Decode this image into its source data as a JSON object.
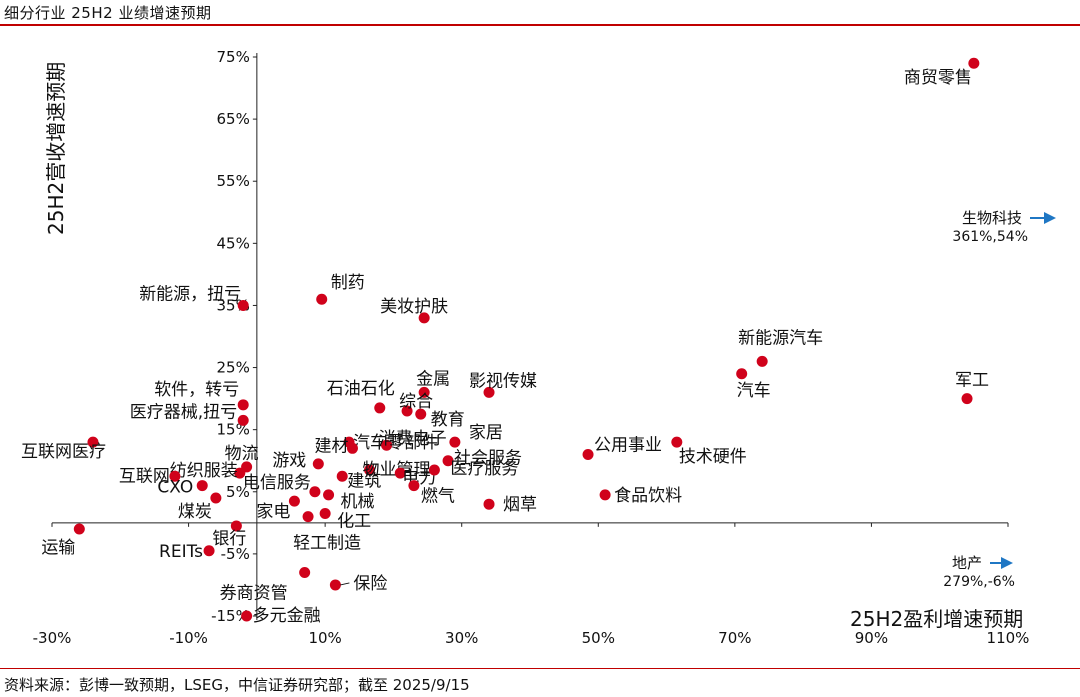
{
  "title": "细分行业 25H2 业绩增速预期",
  "source": "资料来源：彭博一致预期，LSEG，中信证券研究部；截至 2025/9/15",
  "chart_data": {
    "type": "scatter",
    "title": "细分行业 25H2 业绩增速预期",
    "xlabel": "25H2盈利增速预期",
    "ylabel": "25H2营收增速预期",
    "xlim": [
      -30,
      110
    ],
    "ylim": [
      -15,
      75
    ],
    "x_ticks": [
      "-30%",
      "-10%",
      "10%",
      "30%",
      "50%",
      "70%",
      "90%",
      "110%"
    ],
    "y_ticks": [
      "75%",
      "65%",
      "55%",
      "45%",
      "35%",
      "25%",
      "15%",
      "5%",
      "-5%",
      "-15%"
    ],
    "grid": false,
    "color": "#d0021b",
    "arrow_color": "#1f77c4",
    "points": [
      {
        "label": "商贸零售",
        "x": 105,
        "y": 74
      },
      {
        "label": "新能源汽车",
        "x": 74,
        "y": 26
      },
      {
        "label": "汽车",
        "x": 71,
        "y": 24
      },
      {
        "label": "军工",
        "x": 104,
        "y": 20
      },
      {
        "label": "制药",
        "x": 9.5,
        "y": 36
      },
      {
        "label": "新能源，扭亏",
        "x": -2,
        "y": 35
      },
      {
        "label": "美妆护肤",
        "x": 24.5,
        "y": 33
      },
      {
        "label": "影视传媒",
        "x": 34,
        "y": 21
      },
      {
        "label": "金属",
        "x": 24.5,
        "y": 21
      },
      {
        "label": "石油石化",
        "x": 18,
        "y": 18.5
      },
      {
        "label": "综合",
        "x": 22,
        "y": 18
      },
      {
        "label": "教育",
        "x": 24,
        "y": 17.5
      },
      {
        "label": "软件，转亏",
        "x": -2,
        "y": 19
      },
      {
        "label": "医疗器械,扭亏",
        "x": -2,
        "y": 16.5
      },
      {
        "label": "汽车零部件",
        "x": 13.5,
        "y": 13
      },
      {
        "label": "建材",
        "x": 14,
        "y": 12
      },
      {
        "label": "消费电子",
        "x": 19,
        "y": 12.5
      },
      {
        "label": "家居",
        "x": 29,
        "y": 13
      },
      {
        "label": "公用事业",
        "x": 48.5,
        "y": 11
      },
      {
        "label": "技术硬件",
        "x": 61.5,
        "y": 13
      },
      {
        "label": "互联网医疗",
        "x": -24,
        "y": 13
      },
      {
        "label": "社会服务",
        "x": 28,
        "y": 10
      },
      {
        "label": "物流",
        "x": -1.5,
        "y": 9
      },
      {
        "label": "游戏",
        "x": 9,
        "y": 9.5
      },
      {
        "label": "物业管理",
        "x": 16.5,
        "y": 8.5
      },
      {
        "label": "电力",
        "x": 21,
        "y": 8
      },
      {
        "label": "医疗服务",
        "x": 26,
        "y": 8.5
      },
      {
        "label": "纺织服装",
        "x": -2.5,
        "y": 8
      },
      {
        "label": "互联网",
        "x": -12,
        "y": 7.5
      },
      {
        "label": "建筑",
        "x": 12.5,
        "y": 7.5
      },
      {
        "label": "燃气",
        "x": 23,
        "y": 6
      },
      {
        "label": "CXO",
        "x": -8,
        "y": 6
      },
      {
        "label": "电信服务",
        "x": 8.5,
        "y": 5
      },
      {
        "label": "机械",
        "x": 10.5,
        "y": 4.5
      },
      {
        "label": "食品饮料",
        "x": 51,
        "y": 4.5
      },
      {
        "label": "煤炭",
        "x": -6,
        "y": 4
      },
      {
        "label": "家电",
        "x": 5.5,
        "y": 3.5
      },
      {
        "label": "烟草",
        "x": 34,
        "y": 3
      },
      {
        "label": "化工",
        "x": 10,
        "y": 1.5
      },
      {
        "label": "轻工制造",
        "x": 7.5,
        "y": 1
      },
      {
        "label": "运输",
        "x": -26,
        "y": -1
      },
      {
        "label": "银行",
        "x": -3,
        "y": -0.5
      },
      {
        "label": "REITs",
        "x": -7,
        "y": -4.5
      },
      {
        "label": "券商资管",
        "x": 7,
        "y": -8
      },
      {
        "label": "保险",
        "x": 11.5,
        "y": -10
      },
      {
        "label": "多元金融",
        "x": -1.5,
        "y": -15
      }
    ],
    "off_chart": [
      {
        "label": "生物科技",
        "value_text": "361%,54%",
        "x": 361,
        "y": 54
      },
      {
        "label": "地产",
        "value_text": "279%,-6%",
        "x": 279,
        "y": -6
      }
    ]
  }
}
